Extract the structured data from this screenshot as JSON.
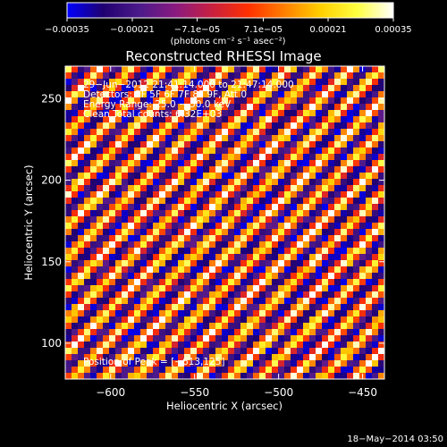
{
  "chart_data": {
    "type": "heatmap",
    "title": "Reconstructed RHESSI Image",
    "xlabel": "Heliocentric X (arcsec)",
    "ylabel": "Heliocentric Y (arcsec)",
    "xlim": [
      -627,
      -437
    ],
    "ylim": [
      78,
      270
    ],
    "xticks": [
      -600,
      -550,
      -500,
      -450
    ],
    "xtick_labels": [
      "−600",
      "−550",
      "−500",
      "−450"
    ],
    "yticks": [
      100,
      150,
      200,
      250
    ],
    "ytick_labels": [
      "100",
      "150",
      "200",
      "250"
    ],
    "colorbar": {
      "range": [
        -0.00035,
        0.00035
      ],
      "ticks": [
        -0.00035,
        -0.00021,
        -7.1e-05,
        7.1e-05,
        0.00021,
        0.00035
      ],
      "tick_labels": [
        "−0.00035",
        "−0.00021",
        "−7.1e−05",
        "7.1e−05",
        "0.00021",
        "0.00035"
      ],
      "unit_label": "(photons cm⁻² s⁻¹ asec⁻²)",
      "colormap": [
        "#0000ff",
        "#200070",
        "#4c1a8a",
        "#8a1a80",
        "#c82040",
        "#ff3000",
        "#ff8000",
        "#ffd000",
        "#ffff40",
        "#ffffff"
      ]
    },
    "annotations": [
      "29−Jun−2012 21:41:14.000 to 21:47:14.000",
      "Detectors: 3F 5F 6F 7F 8F 9F, Att 0",
      "Energy Range: 25.0 − 50.0 keV",
      "Clean     Total counts: 6.32E+03"
    ],
    "peak_text": "Position of Peak = [−613,125]",
    "peak": [
      -613,
      125
    ],
    "stripe_pattern": "diagonal stripes running from lower-left to upper-right, alternating bright yellow/red and dark blue/purple"
  },
  "footer": {
    "timestamp": "18−May−2014 03:50"
  }
}
